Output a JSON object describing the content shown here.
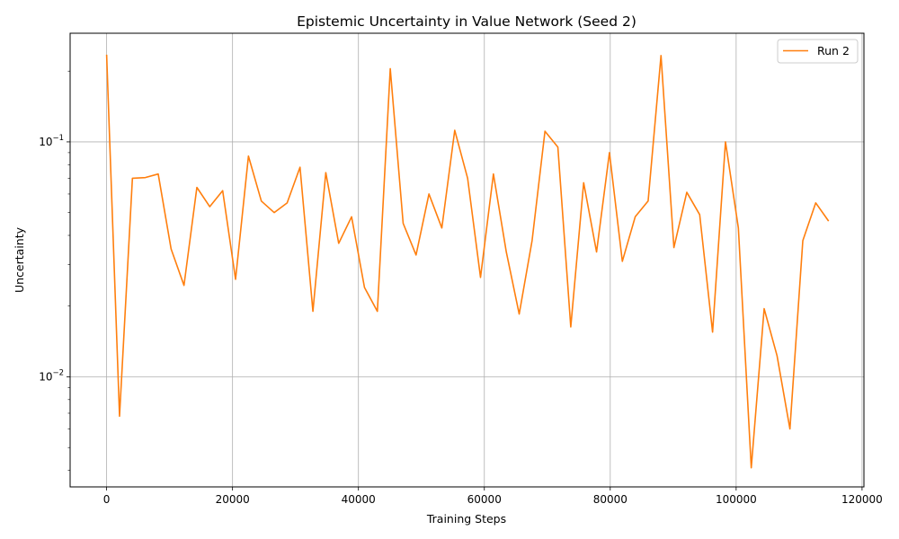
{
  "chart_data": {
    "type": "line",
    "title": "Epistemic Uncertainty in Value Network (Seed 2)",
    "xlabel": "Training Steps",
    "ylabel": "Uncertainty",
    "y_scale": "log",
    "grid": true,
    "legend_position": "top-right",
    "xlim": [
      -5800,
      120300
    ],
    "ylim": [
      0.0034,
      0.29
    ],
    "x_ticks": [
      0,
      20000,
      40000,
      60000,
      80000,
      100000,
      120000
    ],
    "x_tick_labels": [
      "0",
      "20000",
      "40000",
      "60000",
      "80000",
      "100000",
      "120000"
    ],
    "y_ticks": [
      0.01,
      0.1
    ],
    "y_tick_labels": [
      {
        "base": "10",
        "exp": "−2"
      },
      {
        "base": "10",
        "exp": "−1"
      }
    ],
    "series": [
      {
        "name": "Run 2",
        "color": "#ff7f0e",
        "x": [
          0,
          2048,
          4096,
          6144,
          8192,
          10240,
          12288,
          14336,
          16384,
          18432,
          20480,
          22528,
          24576,
          26624,
          28672,
          30720,
          32768,
          34816,
          36864,
          38912,
          40960,
          43008,
          45056,
          47104,
          49152,
          51200,
          53248,
          55296,
          57344,
          59392,
          61440,
          63488,
          65536,
          67584,
          69632,
          71680,
          73728,
          75776,
          77824,
          79872,
          81920,
          83968,
          86016,
          88064,
          90112,
          92160,
          94208,
          96256,
          98304,
          100352,
          102400,
          104448,
          106496,
          108544,
          110592,
          112640,
          114688
        ],
        "values": [
          0.235,
          0.0068,
          0.07,
          0.0705,
          0.073,
          0.035,
          0.0245,
          0.064,
          0.053,
          0.062,
          0.026,
          0.087,
          0.056,
          0.05,
          0.055,
          0.078,
          0.019,
          0.074,
          0.037,
          0.048,
          0.024,
          0.019,
          0.205,
          0.045,
          0.033,
          0.06,
          0.043,
          0.112,
          0.07,
          0.0265,
          0.073,
          0.034,
          0.0185,
          0.038,
          0.111,
          0.095,
          0.0163,
          0.067,
          0.034,
          0.09,
          0.031,
          0.048,
          0.056,
          0.233,
          0.0355,
          0.061,
          0.049,
          0.0155,
          0.1,
          0.043,
          0.0041,
          0.0195,
          0.0123,
          0.006,
          0.038,
          0.055,
          0.046
        ]
      }
    ]
  }
}
